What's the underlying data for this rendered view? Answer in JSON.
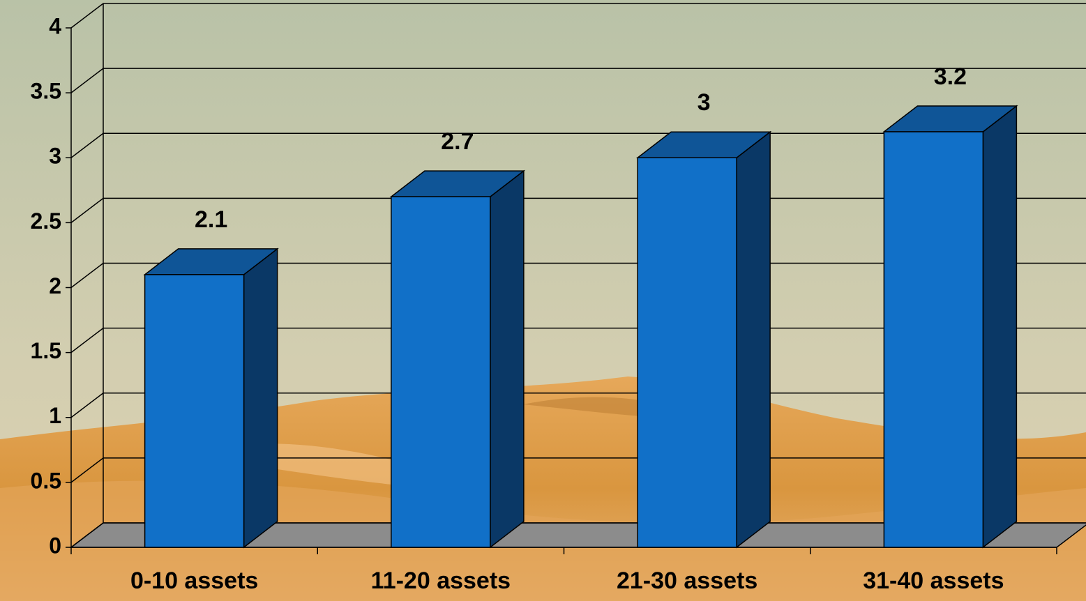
{
  "chart_data": {
    "type": "bar",
    "categories": [
      "0-10 assets",
      "11-20 assets",
      "21-30 assets",
      "31-40 assets"
    ],
    "values": [
      2.1,
      2.7,
      3,
      3.2
    ],
    "color": "#1170c8",
    "ylim": [
      0,
      4
    ],
    "yticks": [
      0,
      0.5,
      1,
      1.5,
      2,
      2.5,
      3,
      3.5,
      4
    ],
    "grid": true
  }
}
